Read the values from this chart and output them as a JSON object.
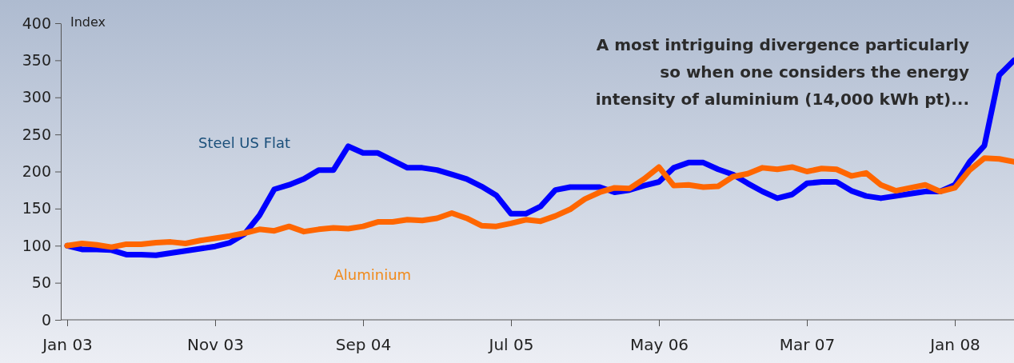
{
  "chart_data": {
    "type": "line",
    "ylabel": "Index",
    "categories": [
      "Jan 03",
      null,
      null,
      null,
      null,
      null,
      null,
      null,
      null,
      null,
      "Nov 03",
      null,
      null,
      null,
      null,
      null,
      null,
      null,
      null,
      null,
      "Sep 04",
      null,
      null,
      null,
      null,
      null,
      null,
      null,
      null,
      null,
      "Jul 05",
      null,
      null,
      null,
      null,
      null,
      null,
      null,
      null,
      null,
      "May 06",
      null,
      null,
      null,
      null,
      null,
      null,
      null,
      null,
      null,
      "Mar 07",
      null,
      null,
      null,
      null,
      null,
      null,
      null,
      null,
      null,
      "Jan 08",
      null,
      null,
      null,
      null
    ],
    "series": [
      {
        "name": "Steel US Flat",
        "color": "#0000ff",
        "values": [
          100,
          95,
          95,
          94,
          88,
          88,
          87,
          90,
          93,
          96,
          99,
          104,
          116,
          141,
          176,
          182,
          190,
          202,
          202,
          234,
          225,
          225,
          215,
          205,
          205,
          202,
          196,
          190,
          180,
          168,
          143,
          143,
          153,
          175,
          179,
          179,
          179,
          172,
          175,
          181,
          186,
          205,
          212,
          212,
          203,
          196,
          184,
          173,
          164,
          169,
          184,
          186,
          186,
          174,
          167,
          164,
          167,
          170,
          173,
          173,
          182,
          213,
          235,
          330,
          350
        ]
      },
      {
        "name": "Aluminium",
        "color": "#ff6600",
        "values": [
          100,
          103,
          101,
          98,
          102,
          102,
          104,
          105,
          103,
          107,
          110,
          113,
          117,
          122,
          120,
          126,
          119,
          122,
          124,
          123,
          126,
          132,
          132,
          135,
          134,
          137,
          144,
          137,
          127,
          126,
          130,
          135,
          133,
          140,
          149,
          163,
          172,
          178,
          177,
          190,
          206,
          181,
          182,
          179,
          180,
          193,
          197,
          205,
          203,
          206,
          200,
          204,
          203,
          194,
          198,
          182,
          174,
          178,
          182,
          173,
          178,
          202,
          218,
          217,
          213
        ]
      }
    ],
    "ylim": [
      0,
      400
    ],
    "yticks": [
      0,
      50,
      100,
      150,
      200,
      250,
      300,
      350,
      400
    ],
    "grid": false,
    "marker": "none",
    "line_style": "solid",
    "annotations": [
      "A most intriguing divergence particularly so when one considers the energy intensity of aluminium (14,000 kWh pt)..."
    ]
  }
}
